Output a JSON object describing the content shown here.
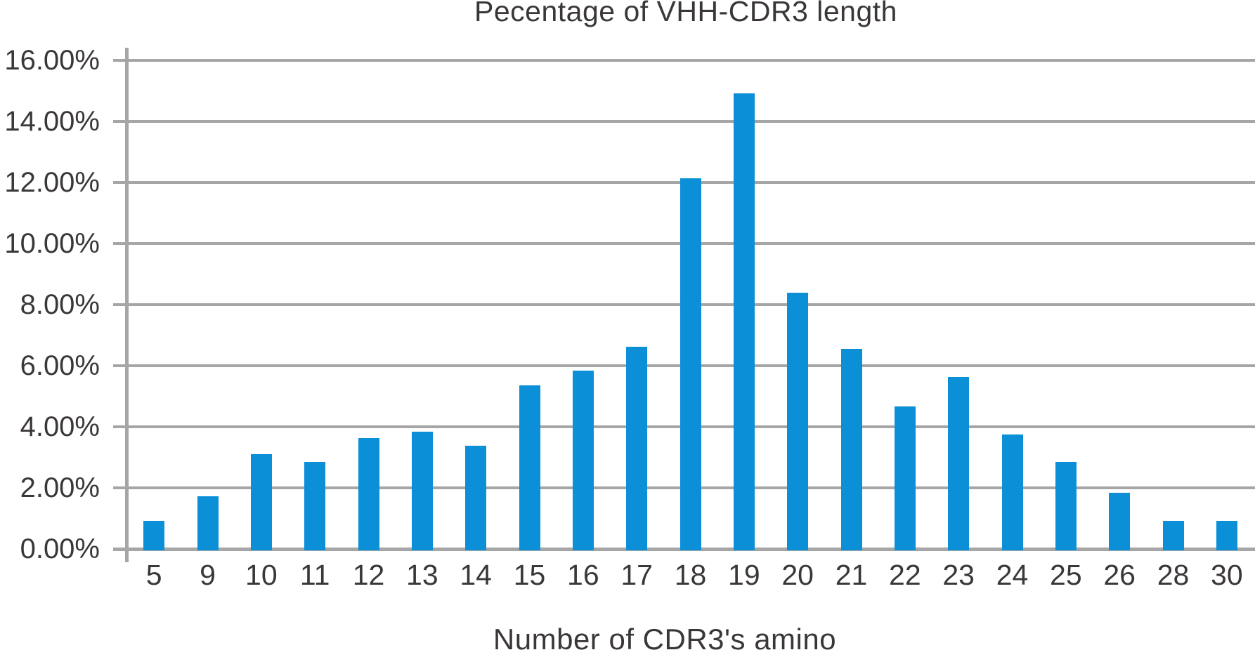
{
  "chart_data": {
    "type": "bar",
    "title": "Pecentage of VHH-CDR3 length",
    "xlabel": "Number of CDR3's amino",
    "ylabel": "",
    "categories": [
      "5",
      "9",
      "10",
      "11",
      "12",
      "13",
      "14",
      "15",
      "16",
      "17",
      "18",
      "19",
      "20",
      "21",
      "22",
      "23",
      "24",
      "25",
      "26",
      "28",
      "30"
    ],
    "values": [
      0.92,
      1.73,
      3.11,
      2.84,
      3.64,
      3.83,
      3.38,
      5.35,
      5.84,
      6.61,
      12.13,
      14.93,
      8.38,
      6.55,
      4.67,
      5.64,
      3.75,
      2.86,
      1.83,
      0.92,
      0.92
    ],
    "y_ticks": [
      "0.00%",
      "2.00%",
      "4.00%",
      "6.00%",
      "8.00%",
      "10.00%",
      "12.00%",
      "14.00%",
      "16.00%"
    ],
    "ylim": [
      0,
      16
    ],
    "grid": true,
    "legend": "none",
    "bar_color": "#0b90d8",
    "grid_color": "#a6a6a6",
    "text_color": "#3b3737"
  }
}
